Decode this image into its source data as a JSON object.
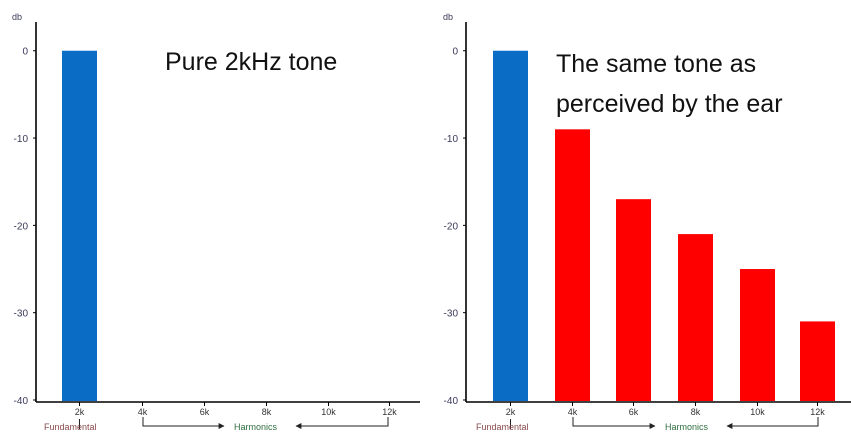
{
  "chart_data": [
    {
      "type": "bar",
      "title_lines": [
        "Pure 2kHz tone"
      ],
      "ylabel": "db",
      "yticks": [
        0,
        -10,
        -20,
        -30,
        -40
      ],
      "ylim": [
        -40,
        1
      ],
      "categories": [
        "2k",
        "4k",
        "6k",
        "8k",
        "10k",
        "12k"
      ],
      "values": [
        0,
        null,
        null,
        null,
        null,
        null
      ],
      "bar_colors": [
        "#0a6cc4",
        "#ff0000",
        "#ff0000",
        "#ff0000",
        "#ff0000",
        "#ff0000"
      ],
      "fundamental_label": "Fundamental",
      "harmonics_label": "Harmonics"
    },
    {
      "type": "bar",
      "title_lines": [
        "The same tone as",
        "perceived by the ear"
      ],
      "ylabel": "db",
      "yticks": [
        0,
        -10,
        -20,
        -30,
        -40
      ],
      "ylim": [
        -40,
        1
      ],
      "categories": [
        "2k",
        "4k",
        "6k",
        "8k",
        "10k",
        "12k"
      ],
      "values": [
        0,
        -9,
        -17,
        -21,
        -25,
        -31
      ],
      "bar_colors": [
        "#0a6cc4",
        "#ff0000",
        "#ff0000",
        "#ff0000",
        "#ff0000",
        "#ff0000"
      ],
      "fundamental_label": "Fundamental",
      "harmonics_label": "Harmonics"
    }
  ]
}
